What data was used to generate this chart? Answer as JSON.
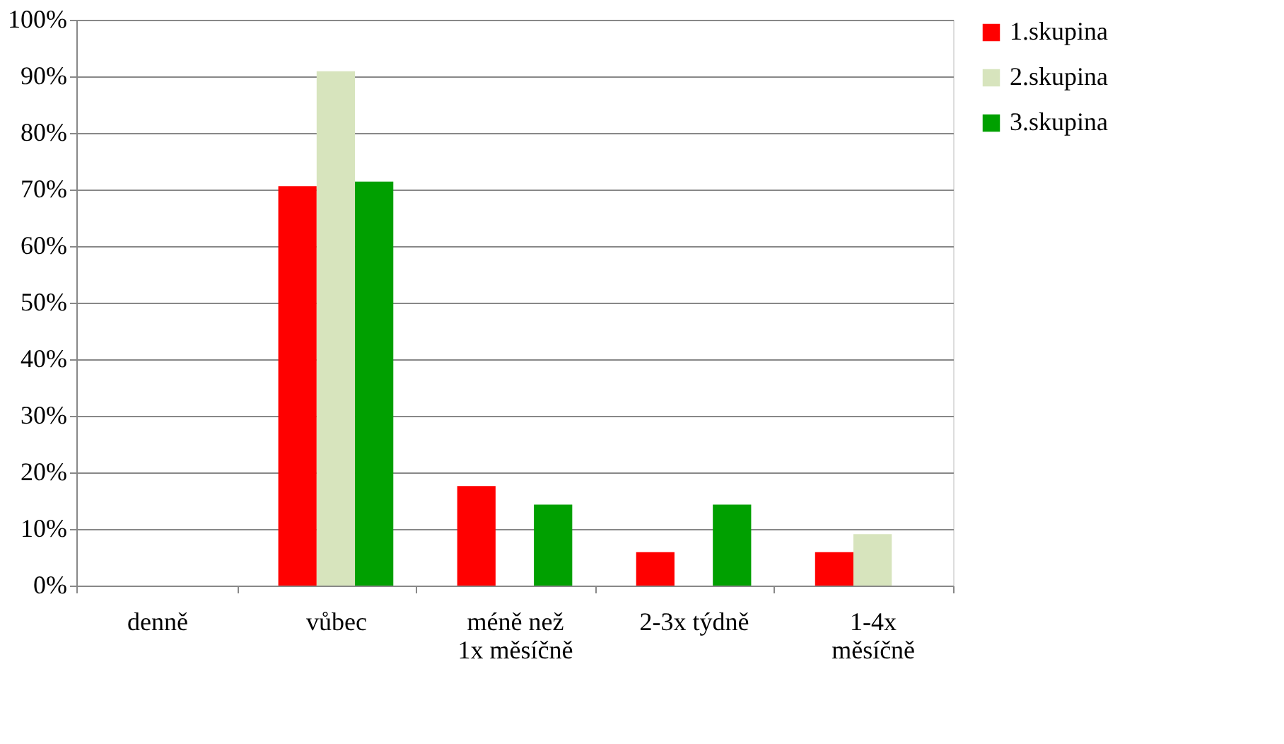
{
  "chart_data": {
    "type": "bar",
    "categories": [
      "denně",
      "vůbec",
      "méně než 1x měsíčně",
      "2-3x týdně",
      "1-4x měsíčně"
    ],
    "series": [
      {
        "name": "1.skupina",
        "color": "#ff0000",
        "values": [
          0,
          70.6,
          17.6,
          5.9,
          5.9
        ]
      },
      {
        "name": "2.skupina",
        "color": "#d7e4bd",
        "values": [
          0,
          90.9,
          0,
          0,
          9.1
        ]
      },
      {
        "name": "3.skupina",
        "color": "#00a000",
        "values": [
          0,
          71.4,
          14.3,
          14.3,
          0
        ]
      }
    ],
    "ylim": [
      0,
      100
    ],
    "yticks": [
      {
        "value": 0,
        "label": "0%"
      },
      {
        "value": 10,
        "label": "10%"
      },
      {
        "value": 20,
        "label": "20%"
      },
      {
        "value": 30,
        "label": "30%"
      },
      {
        "value": 40,
        "label": "40%"
      },
      {
        "value": 50,
        "label": "50%"
      },
      {
        "value": 60,
        "label": "60%"
      },
      {
        "value": 70,
        "label": "70%"
      },
      {
        "value": 80,
        "label": "80%"
      },
      {
        "value": 90,
        "label": "90%"
      },
      {
        "value": 100,
        "label": "100%"
      }
    ],
    "grid": "y",
    "legend": "right"
  }
}
